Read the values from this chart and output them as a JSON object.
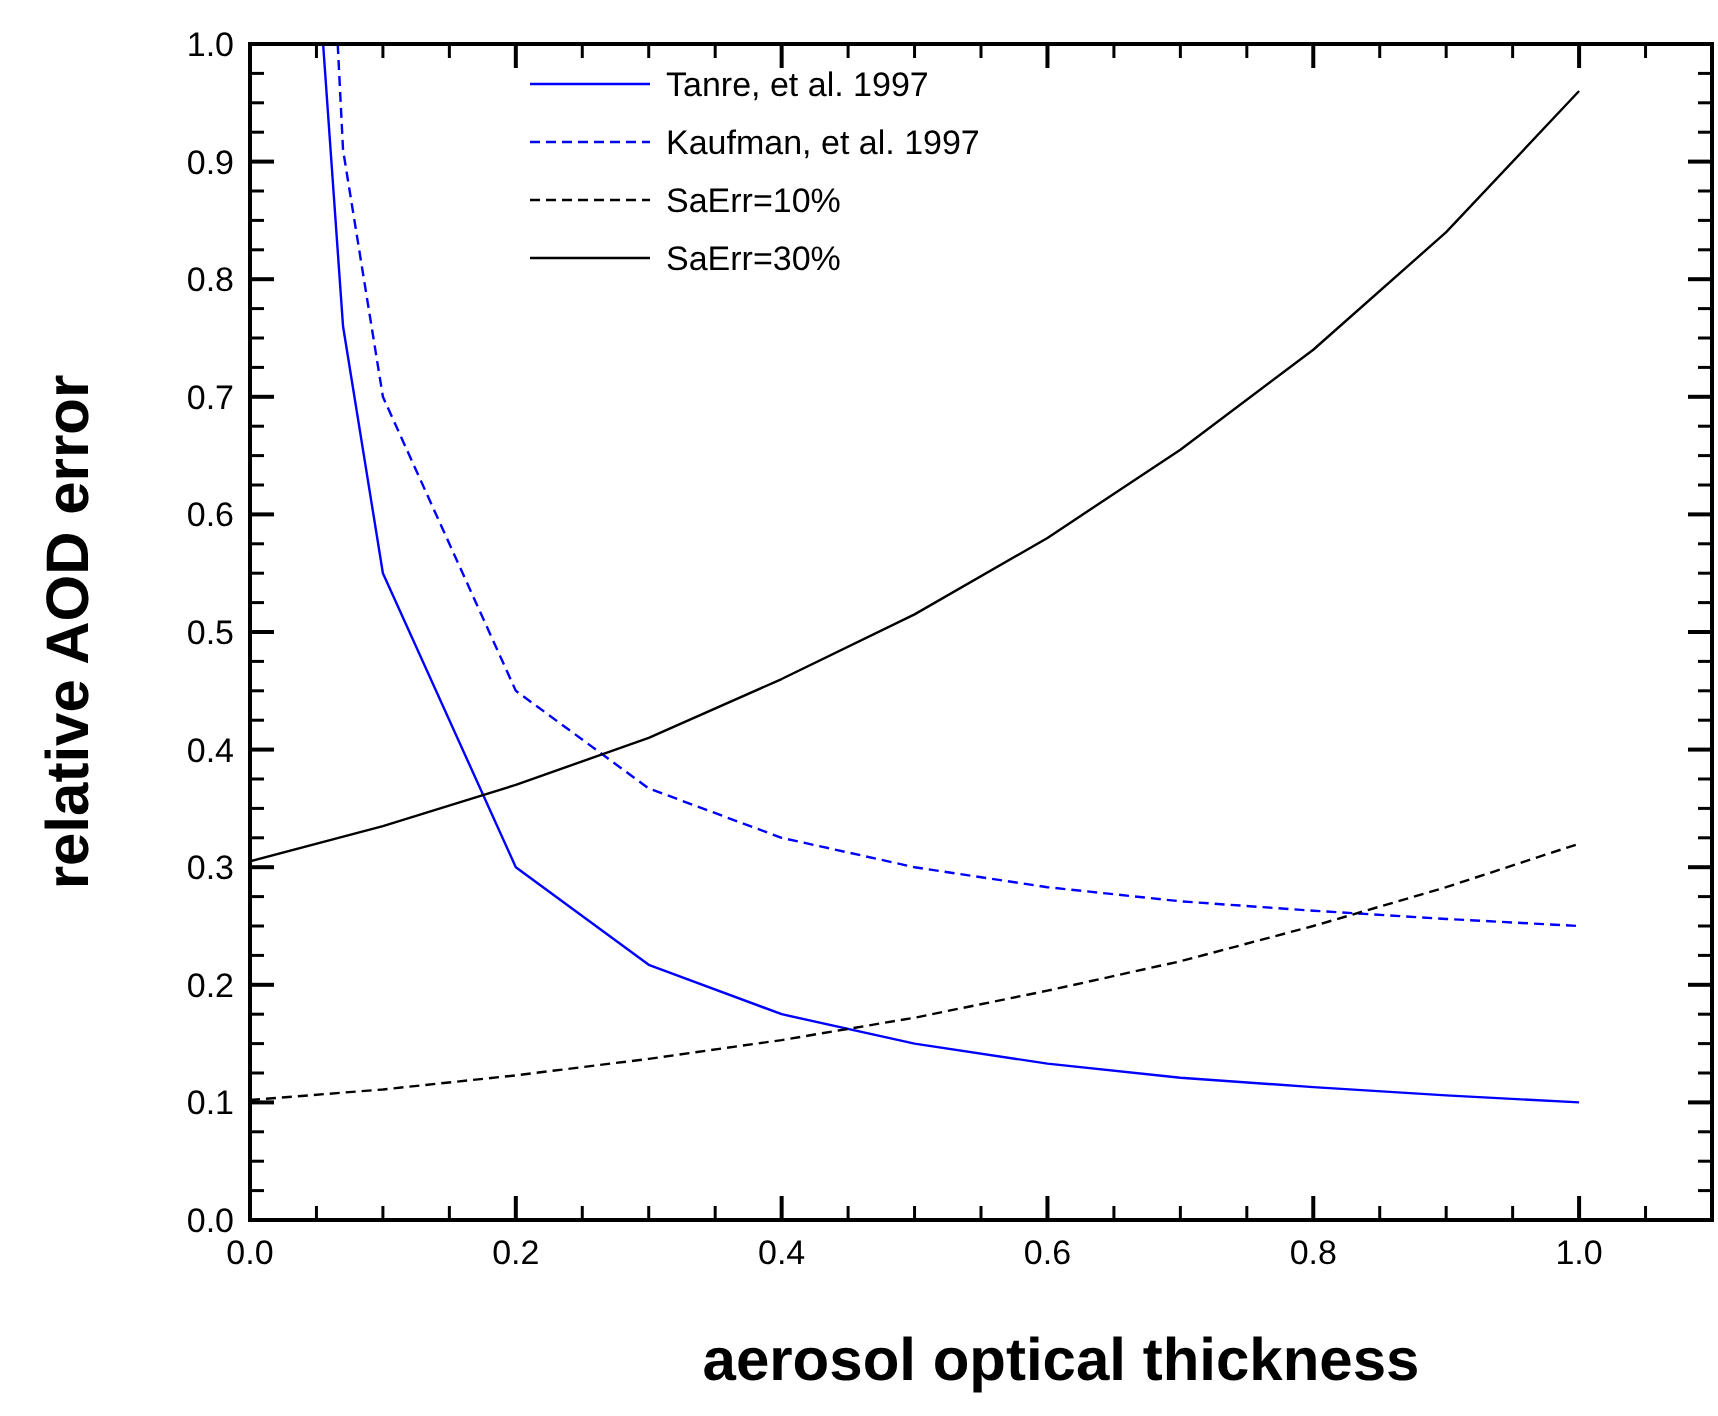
{
  "chart_data": {
    "type": "line",
    "xlabel": "aerosol optical thickness",
    "ylabel": "relative AOD error",
    "xlim": [
      0,
      1.1
    ],
    "ylim": [
      0,
      1
    ],
    "xticks": [
      {
        "value": 0,
        "label": "0.0"
      },
      {
        "value": 0.2,
        "label": "0.2"
      },
      {
        "value": 0.4,
        "label": "0.4"
      },
      {
        "value": 0.6,
        "label": "0.6"
      },
      {
        "value": 0.8,
        "label": "0.8"
      },
      {
        "value": 1,
        "label": "1.0"
      }
    ],
    "yticks": [
      {
        "value": 0,
        "label": "0.0"
      },
      {
        "value": 0.1,
        "label": "0.1"
      },
      {
        "value": 0.2,
        "label": "0.2"
      },
      {
        "value": 0.3,
        "label": "0.3"
      },
      {
        "value": 0.4,
        "label": "0.4"
      },
      {
        "value": 0.5,
        "label": "0.5"
      },
      {
        "value": 0.6,
        "label": "0.6"
      },
      {
        "value": 0.7,
        "label": "0.7"
      },
      {
        "value": 0.8,
        "label": "0.8"
      },
      {
        "value": 0.9,
        "label": "0.9"
      },
      {
        "value": 1,
        "label": "1.0"
      }
    ],
    "grid": false,
    "legend": "top",
    "series": [
      {
        "name": "Tanre, et al. 1997",
        "color": "#0000ff",
        "line_style": "solid",
        "x": [
          0.055,
          0.07,
          0.1,
          0.2,
          0.3,
          0.4,
          0.5,
          0.6,
          0.7,
          0.8,
          0.9,
          1.0
        ],
        "values": [
          1.0,
          0.76,
          0.55,
          0.3,
          0.217,
          0.175,
          0.15,
          0.133,
          0.121,
          0.113,
          0.106,
          0.1
        ]
      },
      {
        "name": "Kaufman, et al. 1997",
        "color": "#0000ff",
        "line_style": "dashed",
        "x": [
          0.066,
          0.07,
          0.1,
          0.2,
          0.3,
          0.4,
          0.5,
          0.6,
          0.7,
          0.8,
          0.9,
          1.0
        ],
        "values": [
          1.0,
          0.91,
          0.7,
          0.45,
          0.367,
          0.325,
          0.3,
          0.283,
          0.271,
          0.263,
          0.256,
          0.25
        ]
      },
      {
        "name": "SaErr=10%",
        "color": "#000000",
        "line_style": "dashed",
        "x": [
          0,
          0.1,
          0.2,
          0.3,
          0.4,
          0.5,
          0.6,
          0.7,
          0.8,
          0.9,
          1.0
        ],
        "values": [
          0.102,
          0.111,
          0.123,
          0.137,
          0.153,
          0.172,
          0.195,
          0.22,
          0.25,
          0.283,
          0.32
        ]
      },
      {
        "name": "SaErr=30%",
        "color": "#000000",
        "line_style": "solid",
        "x": [
          0,
          0.1,
          0.2,
          0.3,
          0.4,
          0.5,
          0.6,
          0.7,
          0.8,
          0.9,
          1.0
        ],
        "values": [
          0.305,
          0.335,
          0.37,
          0.41,
          0.46,
          0.515,
          0.58,
          0.655,
          0.74,
          0.84,
          0.96
        ]
      }
    ]
  }
}
